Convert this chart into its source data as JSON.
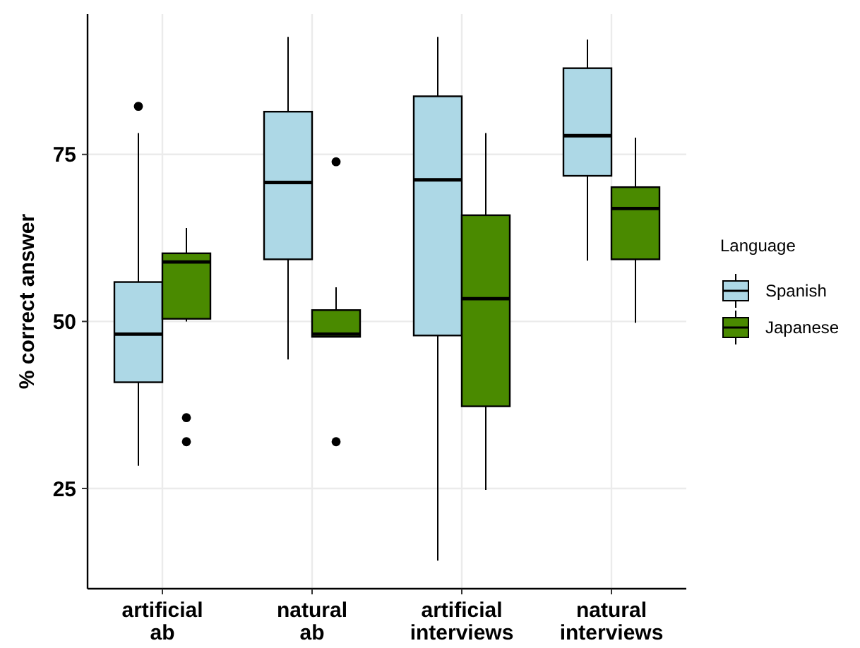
{
  "chart_data": {
    "type": "box",
    "ylabel": "% correct answer",
    "legend_title": "Language",
    "legend": "right",
    "grid": true,
    "categories": [
      "artificial ab",
      "natural ab",
      "artificial interviews",
      "natural interviews"
    ],
    "ylim": [
      10,
      96
    ],
    "yticks": [
      25,
      50,
      75
    ],
    "series": [
      {
        "name": "Spanish",
        "color": "#add8e6",
        "boxes": [
          {
            "low": 28.4,
            "q1": 40.9,
            "median": 48.1,
            "q3": 55.9,
            "high": 78.2,
            "outliers": [
              82.2
            ]
          },
          {
            "low": 44.3,
            "q1": 59.3,
            "median": 70.8,
            "q3": 81.4,
            "high": 92.6
          },
          {
            "low": 14.2,
            "q1": 47.9,
            "median": 71.2,
            "q3": 83.7,
            "high": 92.6
          },
          {
            "low": 59.1,
            "q1": 71.8,
            "median": 77.8,
            "q3": 87.9,
            "high": 92.2
          }
        ]
      },
      {
        "name": "Japanese",
        "color": "#4a8a00",
        "boxes": [
          {
            "low": 50,
            "q1": 50.4,
            "median": 58.9,
            "q3": 60.2,
            "high": 64,
            "outliers": [
              35.6,
              32
            ]
          },
          {
            "low": 47.7,
            "q1": 47.7,
            "median": 48.1,
            "q3": 51.7,
            "high": 55.1,
            "outliers": [
              73.9,
              32
            ]
          },
          {
            "low": 24.8,
            "q1": 37.3,
            "median": 53.4,
            "q3": 65.9,
            "high": 78.2
          },
          {
            "low": 49.8,
            "q1": 59.3,
            "median": 66.9,
            "q3": 70.1,
            "high": 77.5
          }
        ]
      }
    ]
  }
}
